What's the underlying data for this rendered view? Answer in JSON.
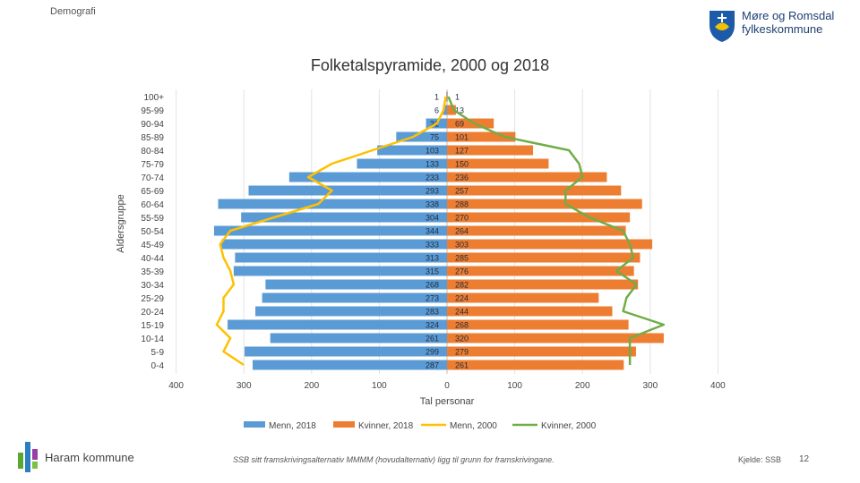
{
  "header": {
    "section": "Demografi",
    "brand_line1": "Møre og Romsdal",
    "brand_line2": "fylkeskommune"
  },
  "footer": {
    "kommune": "Haram kommune",
    "note": "SSB sitt framskrivingsalternativ MMMM (hovudalternativ) ligg til grunn for framskrivingane.",
    "source": "Kjelde: SSB",
    "page": "12"
  },
  "colors": {
    "menn2018": "#5b9bd5",
    "kvinner2018": "#ed7d31",
    "menn2000": "#ffc000",
    "kvinner2000": "#70ad47"
  },
  "chart_data": {
    "type": "bar",
    "orientation": "horizontal-pyramid",
    "title": "Folketalspyramide, 2000 og 2018",
    "xlabel": "Tal personar",
    "ylabel": "Aldersgruppe",
    "xlim": [
      -400,
      400
    ],
    "xticks": [
      "400",
      "300",
      "200",
      "100",
      "0",
      "100",
      "200",
      "300",
      "400"
    ],
    "categories": [
      "100+",
      "95-99",
      "90-94",
      "85-89",
      "80-84",
      "75-79",
      "70-74",
      "65-69",
      "60-64",
      "55-59",
      "50-54",
      "45-49",
      "40-44",
      "35-39",
      "30-34",
      "25-29",
      "20-24",
      "15-19",
      "10-14",
      "5-9",
      "0-4"
    ],
    "series": [
      {
        "name": "Menn, 2018",
        "type": "bar",
        "side": "left",
        "values": [
          1,
          6,
          31,
          75,
          103,
          133,
          233,
          293,
          338,
          304,
          344,
          333,
          313,
          315,
          268,
          273,
          283,
          324,
          261,
          299,
          287
        ]
      },
      {
        "name": "Kvinner, 2018",
        "type": "bar",
        "side": "right",
        "values": [
          1,
          13,
          69,
          101,
          127,
          150,
          236,
          257,
          288,
          270,
          264,
          303,
          285,
          276,
          282,
          224,
          244,
          268,
          320,
          279,
          261
        ]
      },
      {
        "name": "Menn, 2000",
        "type": "line",
        "side": "left",
        "values": [
          2,
          5,
          15,
          50,
          110,
          170,
          205,
          170,
          190,
          255,
          320,
          335,
          330,
          320,
          315,
          330,
          330,
          340,
          320,
          330,
          300
        ]
      },
      {
        "name": "Kvinner, 2000",
        "type": "line",
        "side": "right",
        "values": [
          2,
          10,
          40,
          85,
          180,
          195,
          200,
          175,
          175,
          210,
          260,
          270,
          275,
          250,
          280,
          265,
          260,
          320,
          270,
          270,
          270
        ]
      }
    ],
    "legend_position": "bottom"
  }
}
